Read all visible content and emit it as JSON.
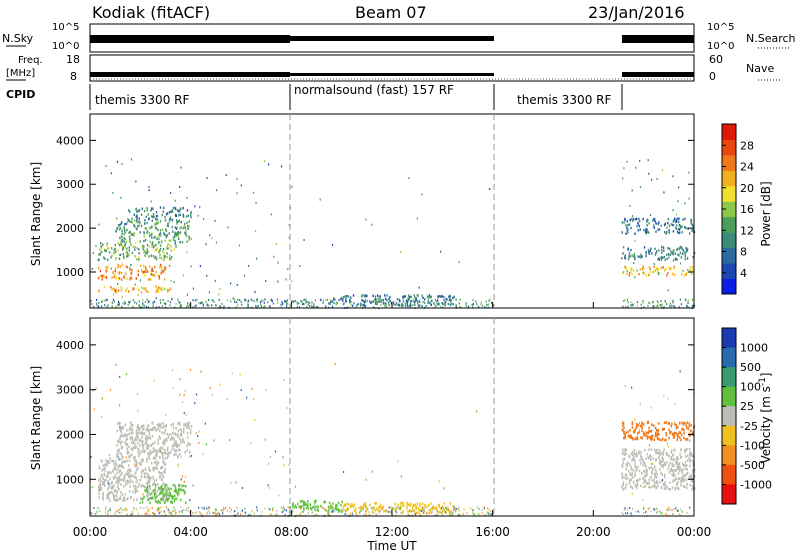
{
  "header": {
    "station": "Kodiak (fitACF)",
    "beam": "Beam 07",
    "date": "23/Jan/2016"
  },
  "status_panels": {
    "nsky_label": "N.Sky",
    "nsearch_label": "N.Search",
    "freq_label_line1": "Freq.",
    "freq_label_line2": "[MHz]",
    "nave_label": "Nave",
    "cpid_label": "CPID",
    "noise_left_ticks": [
      "10^5",
      "10^0"
    ],
    "noise_right_ticks": [
      "10^5",
      "10^0"
    ],
    "freq_left_ticks": [
      "18",
      "8"
    ],
    "nave_right_ticks": [
      "60",
      "0"
    ],
    "cpid_segments": [
      {
        "label": "themis 3300 RF",
        "start_hour": 0,
        "end_hour": 8
      },
      {
        "label": "normalsound (fast) 157 RF",
        "start_hour": 8,
        "end_hour": 16
      },
      {
        "label": "themis 3300 RF",
        "start_hour": 16,
        "end_hour": 21
      }
    ],
    "data_gap_hours": [
      16,
      21
    ]
  },
  "chart_data": [
    {
      "type": "heatmap",
      "panel": "power",
      "ylabel": "Slant Range [km]",
      "xlabel": "",
      "ylim": [
        180,
        4600
      ],
      "xlim": [
        0,
        24
      ],
      "y_ticks": [
        1000,
        2000,
        3000,
        4000
      ],
      "colorbar": {
        "label": "Power [dB]",
        "range": [
          0,
          32
        ],
        "ticks": [
          4,
          8,
          12,
          16,
          20,
          24,
          28
        ],
        "colors": [
          "#0a1ee6",
          "#1e46b4",
          "#2a6a9e",
          "#3c8a78",
          "#4c9e5a",
          "#8cc84a",
          "#f0e030",
          "#f2b020",
          "#f07818",
          "#e84810",
          "#e01808"
        ]
      },
      "mark_lines_hours": [
        8,
        16
      ],
      "regions": [
        {
          "t": [
            0.3,
            3.2
          ],
          "r": [
            550,
            700
          ],
          "level": 22
        },
        {
          "t": [
            0.3,
            3.0
          ],
          "r": [
            850,
            1200
          ],
          "level": 24
        },
        {
          "t": [
            0.3,
            3.4
          ],
          "r": [
            1300,
            1700
          ],
          "level": 14
        },
        {
          "t": [
            1.0,
            4.0
          ],
          "r": [
            1700,
            2200
          ],
          "level": 12
        },
        {
          "t": [
            1.5,
            4.0
          ],
          "r": [
            2200,
            2500
          ],
          "level": 9
        },
        {
          "t": [
            21.1,
            24
          ],
          "r": [
            950,
            1150
          ],
          "level": 22
        },
        {
          "t": [
            21.1,
            24
          ],
          "r": [
            1300,
            1600
          ],
          "level": 9
        },
        {
          "t": [
            21.1,
            24
          ],
          "r": [
            1900,
            2250
          ],
          "level": 7
        },
        {
          "t": [
            9.5,
            14.5
          ],
          "r": [
            250,
            500
          ],
          "level": 8
        }
      ]
    },
    {
      "type": "heatmap",
      "panel": "velocity",
      "ylabel": "Slant Range [km]",
      "xlabel": "Time UT",
      "ylim": [
        180,
        4600
      ],
      "xlim": [
        0,
        24
      ],
      "y_ticks": [
        1000,
        2000,
        3000,
        4000
      ],
      "x_tick_labels": [
        "00:00",
        "04:00",
        "08:00",
        "12:00",
        "16:00",
        "20:00",
        "00:00"
      ],
      "x_tick_hours": [
        0,
        4,
        8,
        12,
        16,
        20,
        24
      ],
      "colorbar": {
        "label": "Velocity [m s^-1]",
        "range": [
          -1250,
          1250
        ],
        "ticks": [
          "1000",
          "500",
          "100",
          "25",
          "-25",
          "-100",
          "-500",
          "-1000"
        ],
        "colors": [
          "#1a3ab0",
          "#2a6ab0",
          "#3a9a70",
          "#62c040",
          "#bdbdb5",
          "#f0c020",
          "#f09020",
          "#f05010",
          "#e81010"
        ]
      },
      "mark_lines_hours": [
        8,
        16
      ],
      "regions": [
        {
          "t": [
            0.3,
            3.2
          ],
          "r": [
            550,
            850
          ],
          "level": "gray"
        },
        {
          "t": [
            0.3,
            3.0
          ],
          "r": [
            850,
            1500
          ],
          "level": "gray"
        },
        {
          "t": [
            1.0,
            4.0
          ],
          "r": [
            1500,
            2300
          ],
          "level": "gray"
        },
        {
          "t": [
            2.0,
            3.8
          ],
          "r": [
            500,
            900
          ],
          "level": "green"
        },
        {
          "t": [
            21.1,
            24
          ],
          "r": [
            800,
            1700
          ],
          "level": "gray"
        },
        {
          "t": [
            21.1,
            24
          ],
          "r": [
            1900,
            2300
          ],
          "level": "orange"
        },
        {
          "t": [
            8.0,
            10.0
          ],
          "r": [
            300,
            550
          ],
          "level": "green"
        },
        {
          "t": [
            10,
            14.5
          ],
          "r": [
            280,
            500
          ],
          "level": "yellow"
        }
      ]
    }
  ]
}
